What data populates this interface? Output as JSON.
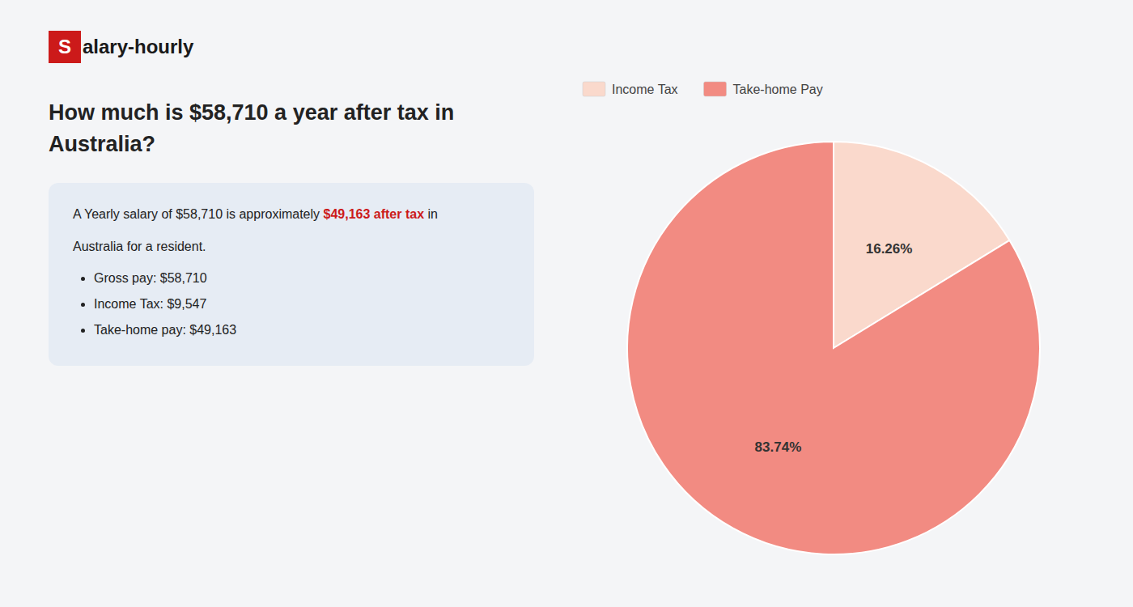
{
  "chart_data": {
    "type": "pie",
    "title": "How much is $58,710 a year after tax in Australia?",
    "annotations": [
      "S",
      "alary-hourly",
      "A Yearly salary of $58,710 is approximately ",
      "$49,163 after tax",
      " in",
      "Australia for a resident.",
      "Gross pay: $58,710",
      "Income Tax: $9,547",
      "Take-home pay: $49,163"
    ],
    "categories": [
      "Income Tax",
      "Take-home Pay"
    ],
    "values": [
      16.26,
      83.74
    ],
    "value_labels": [
      "16.26%",
      "83.74%"
    ],
    "colors": [
      "#fad9cc",
      "#f28b82"
    ],
    "data_labels": true,
    "legend": "upper left"
  }
}
